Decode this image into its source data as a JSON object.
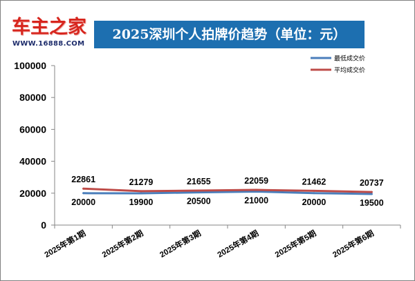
{
  "logo": {
    "brand": "车主之家",
    "url": "WWW.16888.COM"
  },
  "colors": {
    "title_bg": "#1d6fb0",
    "series_low": "#4a7ebb",
    "series_avg": "#be4b48",
    "logo_red": "#d7261e"
  },
  "chart_data": {
    "type": "line",
    "title": "2025深圳个人拍牌价趋势（单位：元）",
    "categories": [
      "2025年第1期",
      "2025年第2期",
      "2025年第3期",
      "2025年第4期",
      "2025年第5期",
      "2025年第6期"
    ],
    "yticks": [
      "0",
      "20000",
      "40000",
      "60000",
      "80000",
      "100000"
    ],
    "ylim": [
      0,
      100000
    ],
    "grid": false,
    "legend_position": "top-right",
    "series": [
      {
        "name": "最低成交价",
        "color": "#4a7ebb",
        "values": [
          20000,
          19900,
          20500,
          21000,
          20000,
          19500
        ],
        "labels": [
          "20000",
          "19900",
          "20500",
          "21000",
          "20000",
          "19500"
        ]
      },
      {
        "name": "平均成交价",
        "color": "#be4b48",
        "values": [
          22861,
          21279,
          21655,
          22059,
          21462,
          20737
        ],
        "labels": [
          "22861",
          "21279",
          "21655",
          "22059",
          "21462",
          "20737"
        ]
      }
    ]
  }
}
